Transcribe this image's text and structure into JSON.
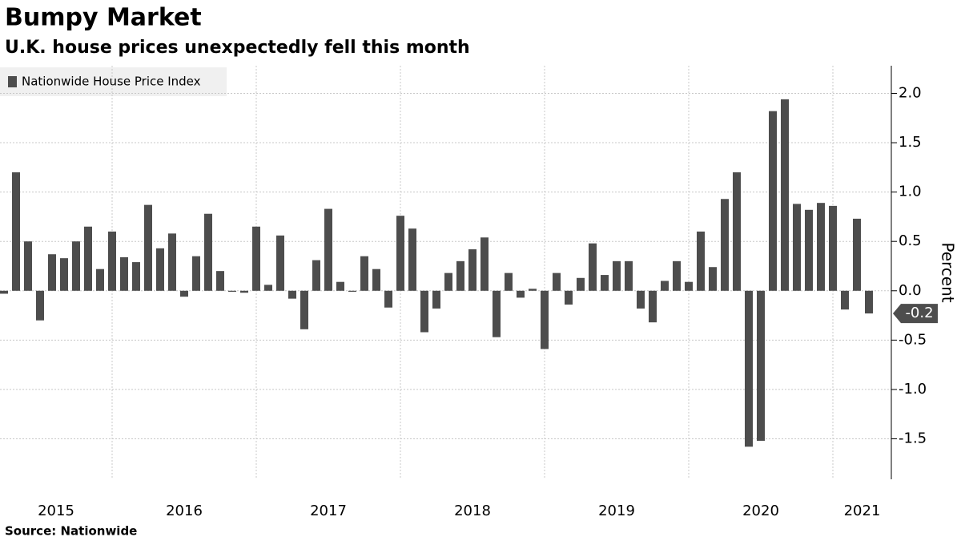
{
  "chart_data": {
    "type": "bar",
    "title": "Bumpy Market",
    "subtitle": "U.K. house prices unexpectedly fell this month",
    "source": "Source: Nationwide",
    "y_label": "Percent",
    "legend": "Nationwide House Price Index",
    "color": "#4d4d4d",
    "grid": true,
    "ylim": [
      -1.91,
      2.28
    ],
    "yticks": [
      {
        "value": -1.5,
        "label": "-1.5"
      },
      {
        "value": -1,
        "label": "-1.0"
      },
      {
        "value": -0.5,
        "label": "-0.5"
      },
      {
        "value": 0,
        "label": "0.0"
      },
      {
        "value": 0.5,
        "label": "0.5"
      },
      {
        "value": 1,
        "label": "1.0"
      },
      {
        "value": 1.5,
        "label": "1.5"
      },
      {
        "value": 2,
        "label": "2.0"
      }
    ],
    "groups": [
      {
        "label": "2015",
        "values": [
          -0.03,
          1.2,
          0.5,
          -0.3,
          0.37,
          0.33,
          0.5,
          0.65,
          0.22,
          0.6
        ]
      },
      {
        "label": "2016",
        "values": [
          0.34,
          0.29,
          0.87,
          0.43,
          0.58,
          -0.06,
          0.35,
          0.78,
          0.2,
          -0.01,
          -0.02,
          0.65
        ]
      },
      {
        "label": "2017",
        "values": [
          0.06,
          0.56,
          -0.08,
          -0.39,
          0.31,
          0.83,
          0.09,
          -0.01,
          0.35,
          0.22,
          -0.17,
          0.76
        ]
      },
      {
        "label": "2018",
        "values": [
          0.63,
          -0.42,
          -0.18,
          0.18,
          0.3,
          0.42,
          0.54,
          -0.47,
          0.18,
          -0.07,
          0.02,
          -0.59
        ]
      },
      {
        "label": "2019",
        "values": [
          0.18,
          -0.14,
          0.13,
          0.48,
          0.16,
          0.3,
          0.3,
          -0.18,
          -0.32,
          0.1,
          0.3,
          0.09
        ]
      },
      {
        "label": "2020",
        "values": [
          0.6,
          0.24,
          0.93,
          1.2,
          -1.58,
          -1.52,
          1.82,
          1.94,
          0.88,
          0.82,
          0.89,
          0.86
        ]
      },
      {
        "label": "2021",
        "values": [
          -0.19,
          0.73,
          -0.23
        ],
        "value_labels": [
          null,
          null,
          "-0.2"
        ]
      }
    ]
  }
}
